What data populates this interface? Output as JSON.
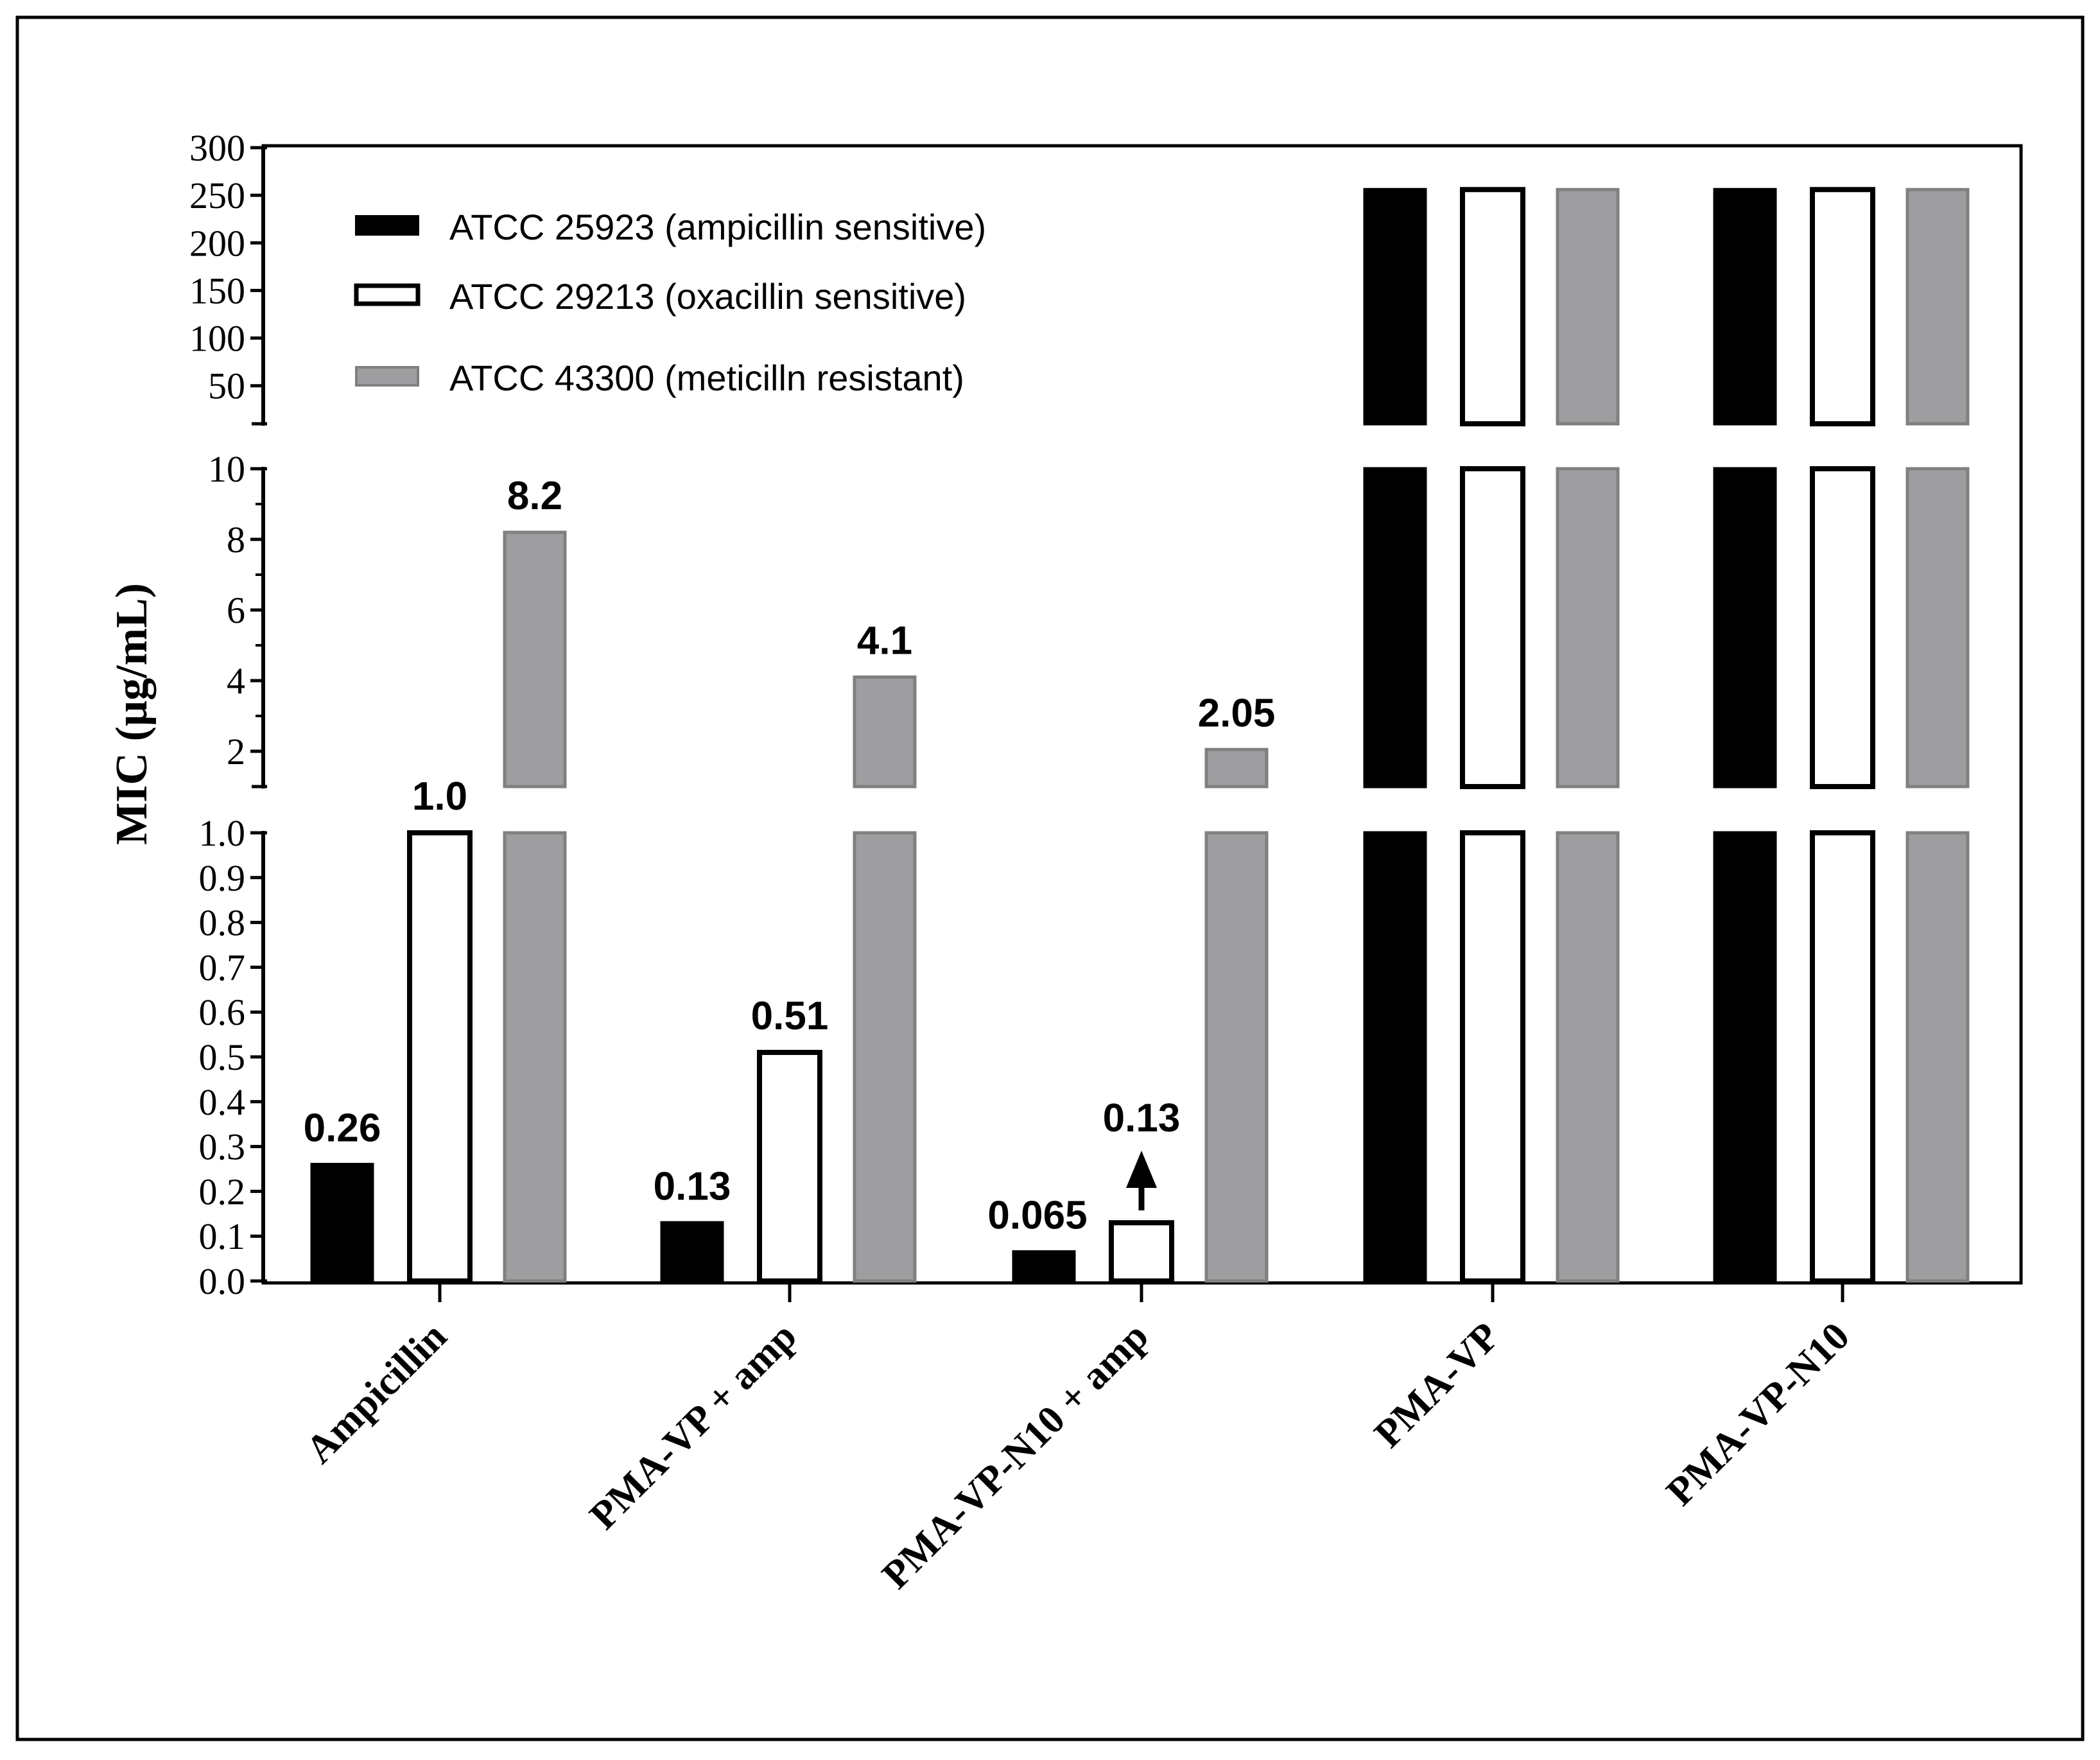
{
  "chart_data": {
    "type": "bar",
    "ylabel": "MIC (µg/mL)",
    "categories": [
      "Ampicillin",
      "PMA-VP + amp",
      "PMA-VP-N10 + amp",
      "PMA-VP",
      "PMA-VP-N10"
    ],
    "series": [
      {
        "name": "ATCC 25923 (ampicillin sensitive)",
        "fill": "#000000",
        "stroke": "#000000",
        "values": [
          0.26,
          0.13,
          0.065,
          256,
          256
        ]
      },
      {
        "name": "ATCC 29213 (oxacillin sensitive)",
        "fill": "#ffffff",
        "stroke": "#000000",
        "values": [
          1.0,
          0.51,
          0.13,
          256,
          256
        ]
      },
      {
        "name": "ATCC 43300 (meticilln resistant)",
        "fill": "#9e9ea0",
        "stroke": "#808080",
        "values": [
          8.2,
          4.1,
          2.05,
          256,
          256
        ]
      }
    ],
    "data_labels": [
      {
        "category": 0,
        "series": 0,
        "text": "0.26"
      },
      {
        "category": 0,
        "series": 1,
        "text": "1.0"
      },
      {
        "category": 0,
        "series": 2,
        "text": "8.2"
      },
      {
        "category": 1,
        "series": 0,
        "text": "0.13"
      },
      {
        "category": 1,
        "series": 1,
        "text": "0.51"
      },
      {
        "category": 1,
        "series": 2,
        "text": "4.1"
      },
      {
        "category": 2,
        "series": 0,
        "text": "0.065"
      },
      {
        "category": 2,
        "series": 1,
        "text": "0.13"
      },
      {
        "category": 2,
        "series": 2,
        "text": "2.05"
      }
    ],
    "annotations": [
      {
        "type": "up-arrow",
        "category": 2,
        "series": 1,
        "meaning": "MIC greater than shown value"
      }
    ],
    "y_segments": [
      {
        "range": [
          0,
          1.0
        ],
        "ticks": [
          0.0,
          0.1,
          0.2,
          0.3,
          0.4,
          0.5,
          0.6,
          0.7,
          0.8,
          0.9,
          1.0
        ],
        "tick_labels": [
          "0.0",
          "0.1",
          "0.2",
          "0.3",
          "0.4",
          "0.5",
          "0.6",
          "0.7",
          "0.8",
          "0.9",
          "1.0"
        ]
      },
      {
        "range": [
          1,
          10
        ],
        "ticks": [
          2,
          4,
          6,
          8,
          10
        ],
        "tick_labels": [
          "2",
          "4",
          "6",
          "8",
          "10"
        ]
      },
      {
        "range": [
          10,
          300
        ],
        "ticks": [
          50,
          100,
          150,
          200,
          250,
          300
        ],
        "tick_labels": [
          "50",
          "100",
          "150",
          "200",
          "250",
          "300"
        ]
      }
    ],
    "legend_position": "top-left"
  }
}
